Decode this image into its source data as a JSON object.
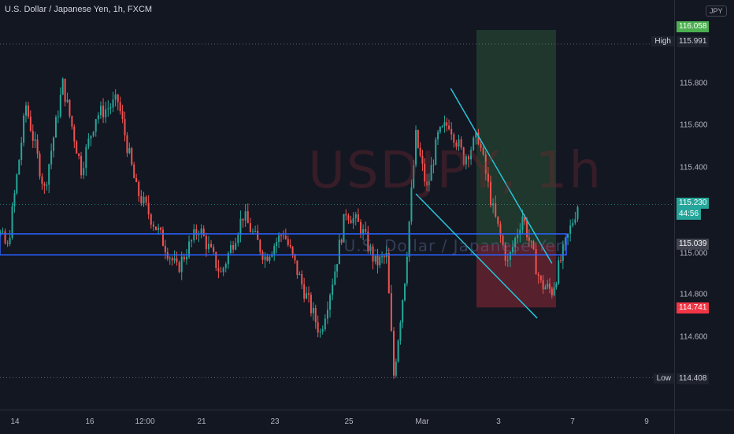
{
  "header": {
    "title": "U.S. Dollar / Japanese Yen, 1h, FXCM"
  },
  "watermark": {
    "symbol": "USDJPY, 1h",
    "description": "U.S. Dollar / Japanese Yen"
  },
  "price_axis": {
    "currency": "JPY",
    "ticks": [
      "115.800",
      "115.600",
      "115.400",
      "115.000",
      "114.800",
      "114.600"
    ],
    "high_label": "High",
    "high_value": "115.991",
    "low_label": "Low",
    "low_value": "114.408",
    "target_tag": "116.058",
    "last_price": "115.230",
    "countdown": "44:56",
    "zone_tag": "115.039",
    "stop_tag": "114.741"
  },
  "time_axis": {
    "labels": [
      "14",
      "16",
      "12:00",
      "21",
      "23",
      "25",
      "Mar",
      "3",
      "7",
      "9"
    ]
  },
  "colors": {
    "background": "#131722",
    "up": "#26a69a",
    "down": "#ef5350",
    "trendline": "#26c6da",
    "zone": "#2962ff",
    "target": "#4caf50",
    "stop": "#f23645"
  },
  "chart_data": {
    "type": "candlestick",
    "symbol": "USDJPY",
    "interval": "1h",
    "ylim": [
      114.3,
      116.2
    ],
    "key_levels": {
      "high": 115.991,
      "low": 114.408,
      "last": 115.23,
      "zone": 115.039,
      "target": 116.058,
      "stop": 114.741
    },
    "trendline_upper": [
      [
        25.85,
        115.78
      ],
      [
        28.6,
        114.95
      ]
    ],
    "trendline_lower": [
      [
        24.9,
        115.28
      ],
      [
        28.2,
        114.69
      ]
    ],
    "segments": [
      [
        12.9,
        115.9
      ],
      [
        13.4,
        115.15
      ],
      [
        13.8,
        115.02
      ],
      [
        14.3,
        115.7
      ],
      [
        14.8,
        115.3
      ],
      [
        15.3,
        115.8
      ],
      [
        15.8,
        115.4
      ],
      [
        16.2,
        115.65
      ],
      [
        16.8,
        115.72
      ],
      [
        17.3,
        115.3
      ],
      [
        17.9,
        115.1
      ],
      [
        18.4,
        114.92
      ],
      [
        19.0,
        115.12
      ],
      [
        19.6,
        114.9
      ],
      [
        20.2,
        115.18
      ],
      [
        20.8,
        114.98
      ],
      [
        21.3,
        115.1
      ],
      [
        21.8,
        114.85
      ],
      [
        22.3,
        114.62
      ],
      [
        22.7,
        114.92
      ],
      [
        23.0,
        115.2
      ],
      [
        23.4,
        115.12
      ],
      [
        23.8,
        114.95
      ],
      [
        24.1,
        114.98
      ],
      [
        24.3,
        114.42
      ],
      [
        24.6,
        114.88
      ],
      [
        24.9,
        115.55
      ],
      [
        25.2,
        115.3
      ],
      [
        25.5,
        115.55
      ],
      [
        25.8,
        115.62
      ],
      [
        26.2,
        115.45
      ],
      [
        26.6,
        115.55
      ],
      [
        27.0,
        115.2
      ],
      [
        27.4,
        114.95
      ],
      [
        27.8,
        115.18
      ],
      [
        28.1,
        114.98
      ],
      [
        28.3,
        114.85
      ],
      [
        28.6,
        114.82
      ],
      [
        28.9,
        115.0
      ],
      [
        29.3,
        115.23
      ]
    ]
  }
}
